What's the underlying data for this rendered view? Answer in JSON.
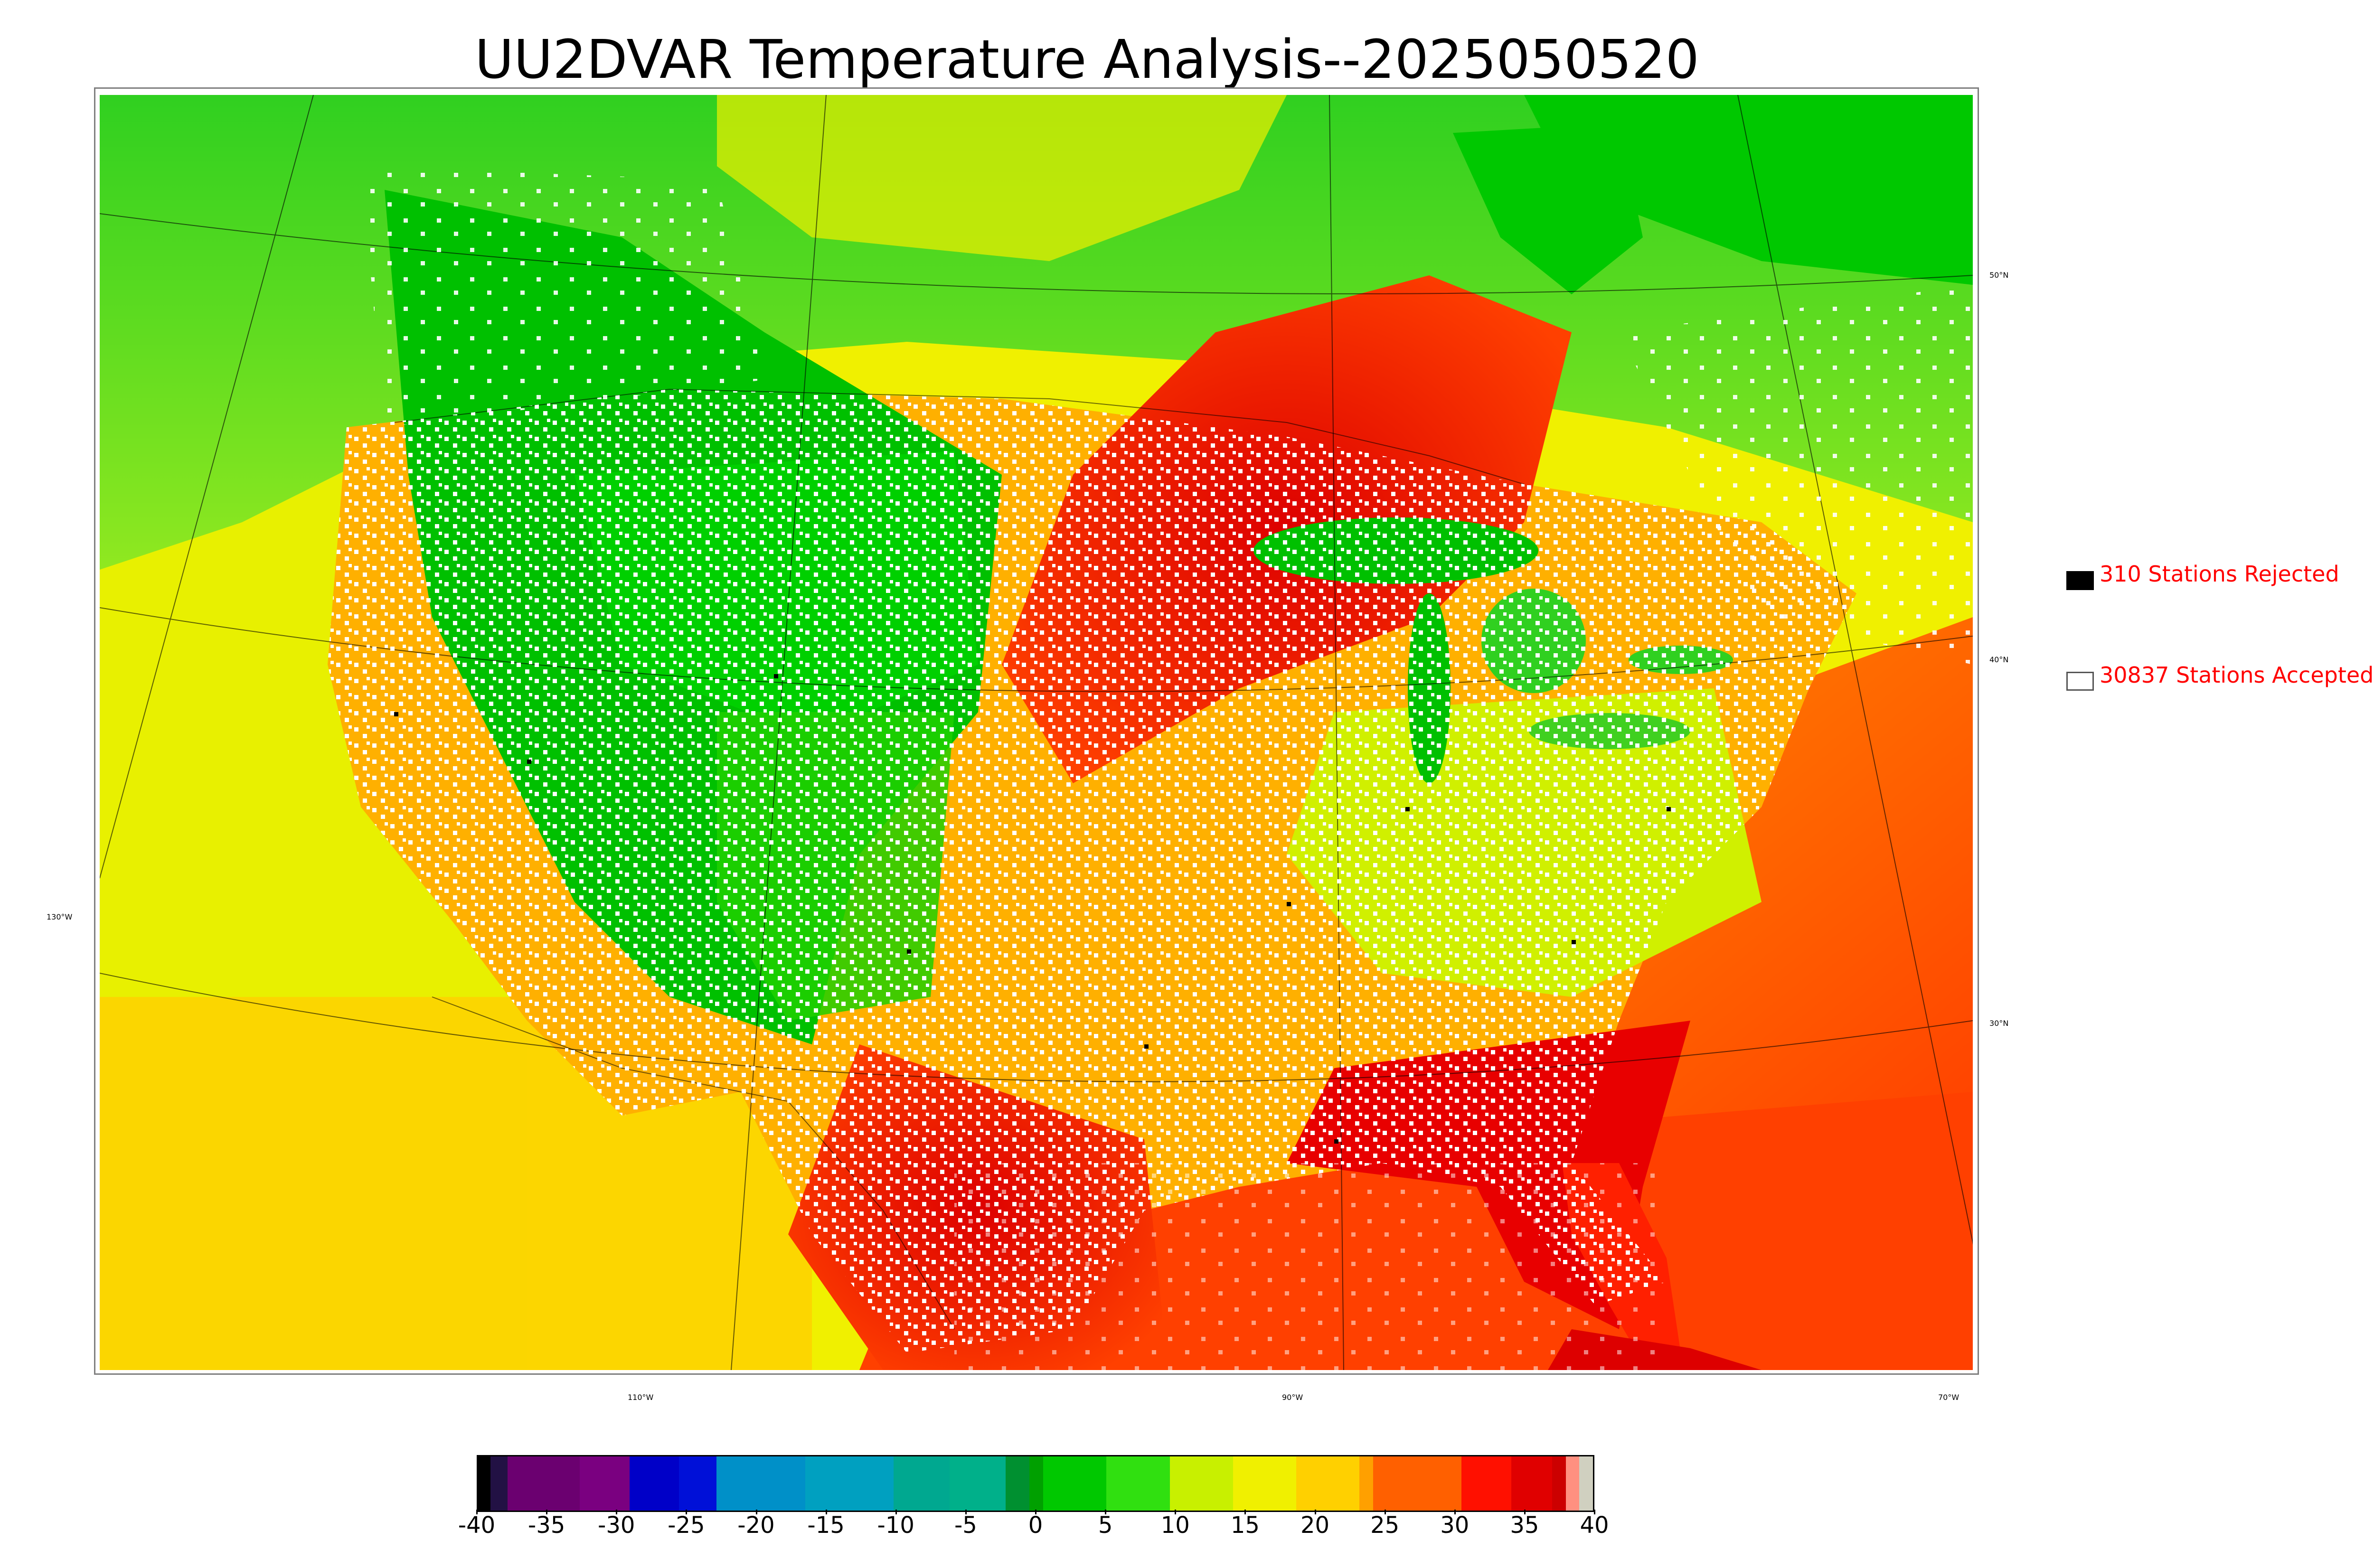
{
  "title": "UU2DVAR Temperature Analysis--2025050520",
  "map": {
    "lat_labels": [
      "50°N",
      "40°N",
      "30°N"
    ],
    "lon_labels": [
      "130°W",
      "110°W",
      "90°W",
      "70°W"
    ]
  },
  "legend": {
    "rejected": {
      "text": "310 Stations Rejected",
      "color": "#000000"
    },
    "accepted": {
      "text": "30837 Stations Accepted",
      "color": "#ffffff"
    }
  },
  "colorbar": {
    "ticks": [
      "-40",
      "-35",
      "-30",
      "-25",
      "-20",
      "-15",
      "-10",
      "-5",
      "0",
      "5",
      "10",
      "15",
      "20",
      "25",
      "30",
      "35",
      "40"
    ],
    "range": [
      -40,
      40
    ],
    "colors": [
      "#000000",
      "#221144",
      "#6b0070",
      "#7a0080",
      "#0000c8",
      "#0010d8",
      "#0090c8",
      "#00a0c0",
      "#00a890",
      "#00b08a",
      "#009030",
      "#00a000",
      "#00c800",
      "#30e010",
      "#c8f000",
      "#f0f000",
      "#ffd000",
      "#ffa000",
      "#ff6000",
      "#ff1000",
      "#e00000",
      "#cc0000",
      "#ff9080",
      "#d0d0c0"
    ],
    "label_text_color": "#ff0000"
  }
}
